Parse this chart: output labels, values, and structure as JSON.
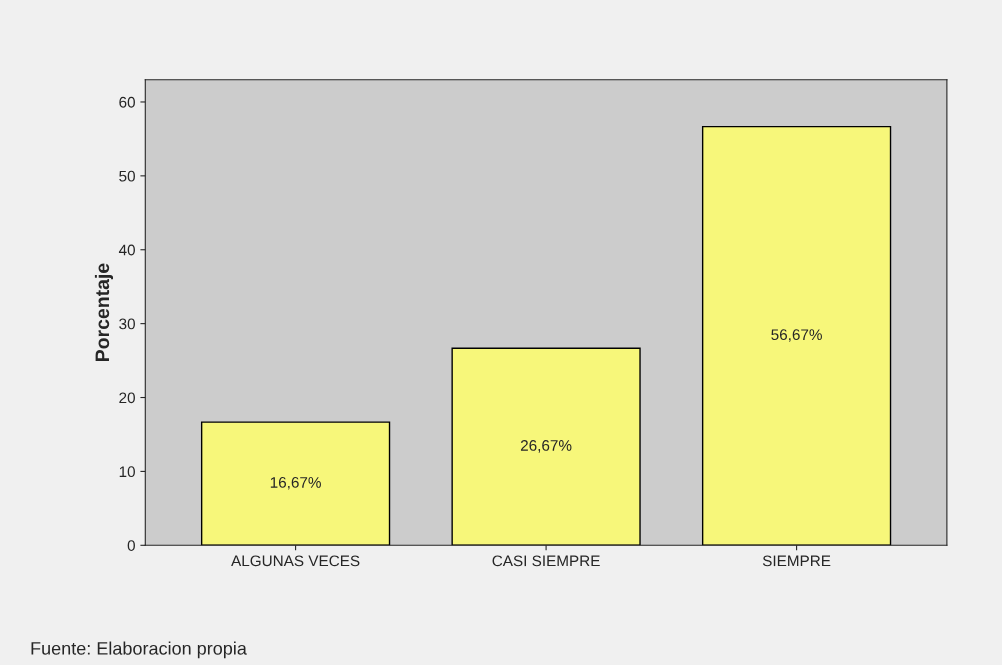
{
  "chart_data": {
    "type": "bar",
    "ylabel": "Porcentaje",
    "categories": [
      "ALGUNAS VECES",
      "CASI SIEMPRE",
      "SIEMPRE"
    ],
    "values": [
      16.67,
      26.67,
      56.67
    ],
    "value_labels": [
      "16,67%",
      "26,67%",
      "56,67%"
    ],
    "color": "#f7f77a",
    "ylim": [
      0,
      63
    ],
    "yticks": [
      0,
      10,
      20,
      30,
      40,
      50,
      60
    ],
    "annotations": [
      "Fuente: Elaboracion propia"
    ]
  }
}
